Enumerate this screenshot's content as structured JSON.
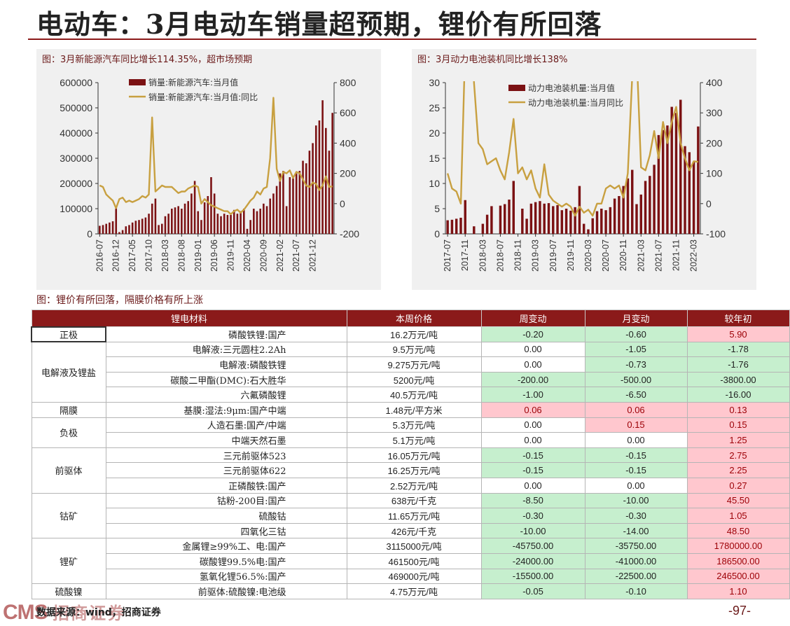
{
  "page": {
    "title": "电动车：3月电动车销量超预期，锂价有所回落",
    "page_number": "-97-",
    "source": "数据来源：wind，招商证券",
    "logo_text": "CMS",
    "logo_cn": "招商证券"
  },
  "chart_data": [
    {
      "type": "bar",
      "caption": "图：3月新能源汽车同比增长114.35%，超市场预期",
      "legend": [
        "销量:新能源汽车:当月值",
        "销量:新能源汽车:当月值:同比"
      ],
      "y_left": {
        "min": 0,
        "max": 600000,
        "ticks": [
          "600000",
          "500000",
          "400000",
          "300000",
          "200000",
          "100000",
          "0"
        ]
      },
      "y_right": {
        "min": -200,
        "max": 800,
        "ticks": [
          "800",
          "600",
          "400",
          "200",
          "0",
          "-200"
        ]
      },
      "x_ticks": [
        "2016-07",
        "2016-12",
        "2017-05",
        "2017-10",
        "2018-03",
        "2018-08",
        "2019-01",
        "2019-06",
        "2019-11",
        "2020-04",
        "2020-09",
        "2021-02",
        "2021-07",
        "2021-12"
      ],
      "colors": {
        "bar": "#7b1113",
        "line": "#c8a040"
      },
      "series": [
        {
          "name": "销量:新能源汽车:当月值",
          "kind": "bar",
          "start": "2016-07",
          "values": [
            32000,
            35000,
            40000,
            45000,
            50000,
            104000,
            7000,
            15000,
            30000,
            35000,
            45000,
            52000,
            55000,
            60000,
            65000,
            80000,
            120000,
            140000,
            35000,
            40000,
            70000,
            80000,
            100000,
            105000,
            110000,
            100000,
            120000,
            130000,
            160000,
            210000,
            90000,
            55000,
            125000,
            150000,
            225000,
            160000,
            80000,
            70000,
            80000,
            75000,
            75000,
            95000,
            80000,
            90000,
            100000,
            20000,
            55000,
            100000,
            90000,
            100000,
            120000,
            110000,
            140000,
            160000,
            190000,
            240000,
            250000,
            110000,
            225000,
            220000,
            240000,
            250000,
            290000,
            280000,
            330000,
            360000,
            430000,
            450000,
            530000,
            420000,
            330000,
            480000
          ]
        },
        {
          "name": "销量:新能源汽车:当月值:同比",
          "kind": "line",
          "values": [
            120,
            110,
            60,
            40,
            20,
            -30,
            30,
            40,
            10,
            20,
            10,
            20,
            30,
            50,
            40,
            60,
            570,
            80,
            100,
            120,
            110,
            110,
            110,
            90,
            70,
            80,
            80,
            100,
            110,
            120,
            110,
            0,
            30,
            10,
            -10,
            -20,
            -30,
            -40,
            -50,
            -50,
            -70,
            -50,
            -40,
            -60,
            -40,
            -10,
            20,
            40,
            80,
            60,
            100,
            110,
            300,
            700,
            230,
            150,
            210,
            200,
            220,
            170,
            210,
            200,
            160,
            120,
            110,
            140,
            130,
            90,
            120,
            180,
            110,
            114.35
          ]
        }
      ]
    },
    {
      "type": "bar",
      "caption": "图：3月动力电池装机同比增长138%",
      "legend": [
        "动力电池装机量:当月值",
        "动力电池装机量:当月同比"
      ],
      "y_left": {
        "min": 0,
        "max": 30,
        "ticks": [
          "30",
          "25",
          "20",
          "15",
          "10",
          "5",
          "0"
        ]
      },
      "y_right": {
        "min": -100,
        "max": 400,
        "ticks": [
          "400",
          "300",
          "200",
          "100",
          "0",
          "-100"
        ]
      },
      "x_ticks": [
        "2017-07",
        "2017-11",
        "2018-03",
        "2018-07",
        "2018-11",
        "2019-03",
        "2019-07",
        "2019-11",
        "2020-03",
        "2020-07",
        "2020-11",
        "2021-03",
        "2021-07",
        "2021-11",
        "2022-03"
      ],
      "colors": {
        "bar": "#7b1113",
        "line": "#c8a040"
      },
      "series": [
        {
          "name": "动力电池装机量:当月值",
          "kind": "bar",
          "start": "2017-07",
          "values": [
            2.7,
            2.8,
            3.0,
            3.2,
            6.7,
            0,
            1.5,
            0,
            2.0,
            3.8,
            5.5,
            0,
            5.6,
            5.9,
            6.8,
            10.5,
            0,
            5.0,
            3.0,
            6.0,
            6.3,
            6.5,
            6.0,
            6.1,
            5.5,
            5.7,
            4.7,
            5.0,
            4.6,
            5.3,
            9.5,
            2.0,
            0.9,
            3.1,
            4.5,
            5.0,
            4.7,
            5.3,
            7.0,
            7.5,
            9.5,
            11.0,
            12.7,
            5.9,
            7.8,
            10.5,
            11.5,
            13.7,
            19.6,
            20.6,
            21.5,
            25.2,
            24.0,
            26.6,
            17.4,
            16.2,
            14.3,
            21.3
          ]
        },
        {
          "name": "动力电池装机量:当月同比",
          "kind": "line",
          "values": [
            100,
            50,
            40,
            0,
            520,
            720,
            400,
            200,
            180,
            130,
            140,
            150,
            110,
            80,
            170,
            280,
            100,
            120,
            80,
            110,
            50,
            20,
            130,
            30,
            10,
            0,
            -10,
            0,
            -10,
            -40,
            -10,
            -30,
            -20,
            -40,
            0,
            0,
            50,
            60,
            50,
            60,
            20,
            100,
            420,
            500,
            120,
            110,
            160,
            240,
            150,
            270,
            200,
            270,
            320,
            200,
            150,
            110,
            140,
            138
          ]
        }
      ]
    }
  ],
  "table": {
    "caption": "图：锂价有所回落，隔膜价格有所上涨",
    "headers": [
      "锂电材料",
      "本周价格",
      "周变动",
      "月变动",
      "较年初"
    ],
    "groups": [
      {
        "category": "正极",
        "rows": [
          {
            "name": "磷酸铁锂:国产",
            "price": "16.2万元/吨",
            "week": "-0.20",
            "month": "-0.60",
            "ytd": "5.90"
          }
        ]
      },
      {
        "category": "电解液及锂盐",
        "rows": [
          {
            "name": "电解液:三元圆柱2.2Ah",
            "price": "9.5万元/吨",
            "week": "0.00",
            "month": "-1.05",
            "ytd": "-1.78"
          },
          {
            "name": "电解液:磷酸铁锂",
            "price": "9.275万元/吨",
            "week": "0.00",
            "month": "-0.73",
            "ytd": "-1.76"
          },
          {
            "name": "碳酸二甲酯(DMC):石大胜华",
            "price": "5200元/吨",
            "week": "-200.00",
            "month": "-500.00",
            "ytd": "-3800.00"
          },
          {
            "name": "六氟磷酸锂",
            "price": "40.5万元/吨",
            "week": "-1.00",
            "month": "-6.50",
            "ytd": "-16.00"
          }
        ]
      },
      {
        "category": "隔膜",
        "rows": [
          {
            "name": "基膜:湿法:9μm:国产中端",
            "price": "1.48元/平方米",
            "week": "0.06",
            "month": "0.06",
            "ytd": "0.13"
          }
        ]
      },
      {
        "category": "负极",
        "rows": [
          {
            "name": "人造石墨:国产/中端",
            "price": "5.3万元/吨",
            "week": "0.00",
            "month": "0.15",
            "ytd": "0.15"
          },
          {
            "name": "中端天然石墨",
            "price": "5.1万元/吨",
            "week": "0.00",
            "month": "0.00",
            "ytd": "1.25"
          }
        ]
      },
      {
        "category": "前驱体",
        "rows": [
          {
            "name": "三元前驱体523",
            "price": "16.05万元/吨",
            "week": "-0.15",
            "month": "-0.15",
            "ytd": "2.75"
          },
          {
            "name": "三元前驱体622",
            "price": "16.25万元/吨",
            "week": "-0.15",
            "month": "-0.15",
            "ytd": "2.25"
          },
          {
            "name": "正磷酸铁:国产",
            "price": "2.52万元/吨",
            "week": "0.00",
            "month": "0.00",
            "ytd": "0.27"
          }
        ]
      },
      {
        "category": "钴矿",
        "rows": [
          {
            "name": "钴粉-200目:国产",
            "price": "638元/千克",
            "week": "-8.50",
            "month": "-10.00",
            "ytd": "45.50"
          },
          {
            "name": "硫酸钴",
            "price": "11.65万元/吨",
            "week": "-0.30",
            "month": "-0.30",
            "ytd": "1.05"
          },
          {
            "name": "四氧化三钴",
            "price": "426元/千克",
            "week": "-10.00",
            "month": "-14.00",
            "ytd": "48.50"
          }
        ]
      },
      {
        "category": "锂矿",
        "rows": [
          {
            "name": "金属锂≥99%工、电:国产",
            "price": "3115000元/吨",
            "week": "-45750.00",
            "month": "-35750.00",
            "ytd": "1780000.00"
          },
          {
            "name": "碳酸锂99.5%电:国产",
            "price": "461500元/吨",
            "week": "-24000.00",
            "month": "-41000.00",
            "ytd": "186500.00"
          },
          {
            "name": "氢氧化锂56.5%:国产",
            "price": "469000元/吨",
            "week": "-15500.00",
            "month": "-22500.00",
            "ytd": "246500.00"
          }
        ]
      },
      {
        "category": "硫酸镍",
        "rows": [
          {
            "name": "前驱体:硫酸镍:电池级",
            "price": "4.75万元/吨",
            "week": "-0.05",
            "month": "-0.10",
            "ytd": "1.10"
          }
        ]
      }
    ]
  }
}
